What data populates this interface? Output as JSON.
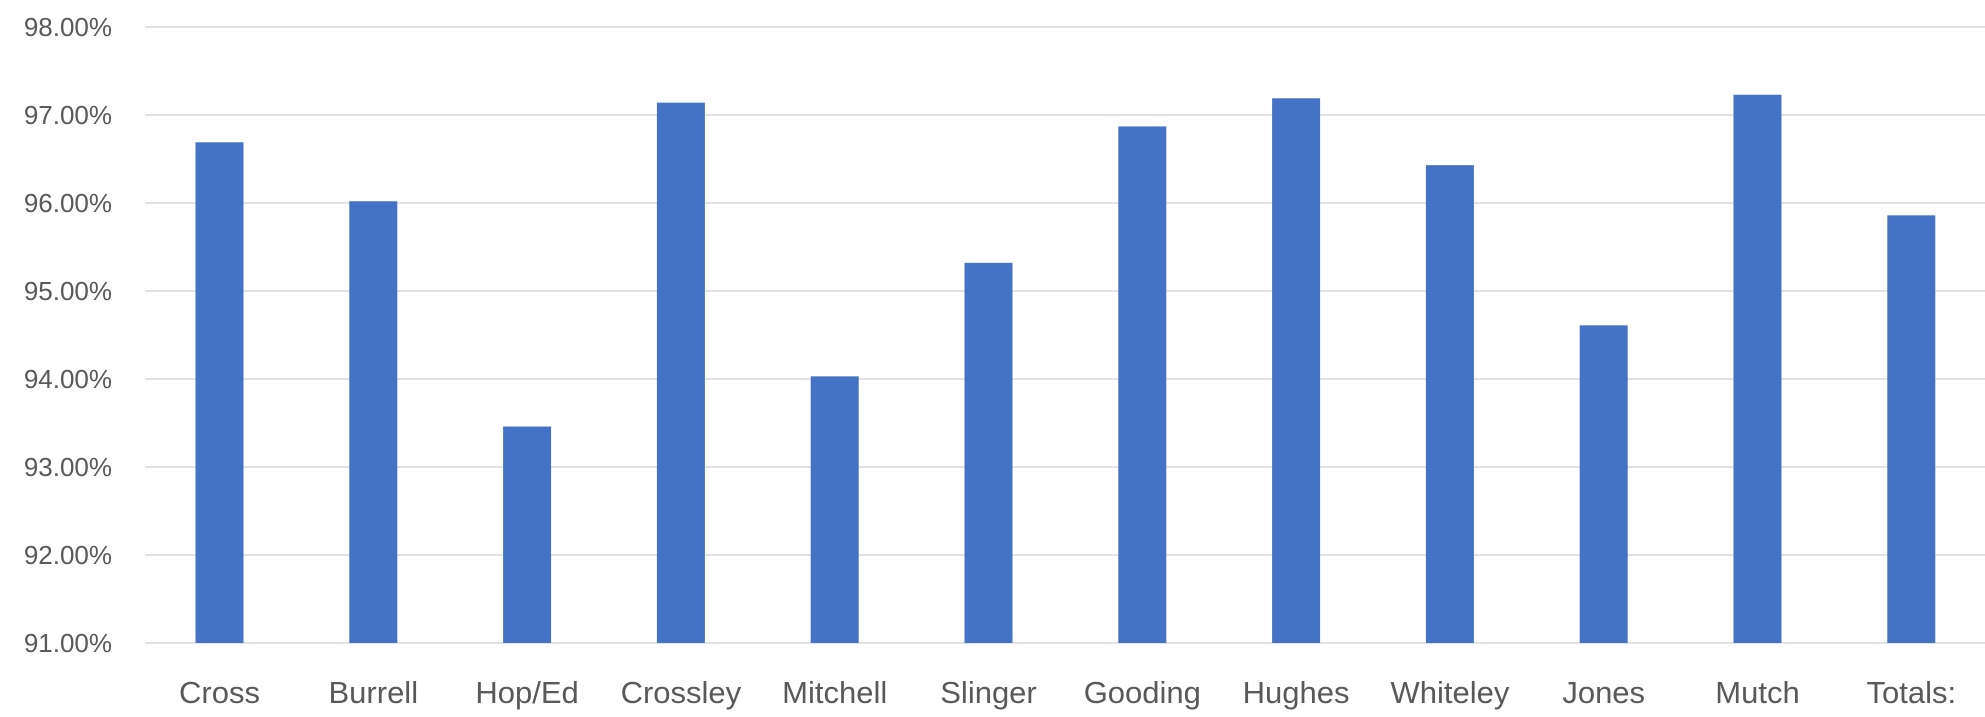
{
  "chart_data": {
    "type": "bar",
    "title": "",
    "xlabel": "",
    "ylabel": "",
    "categories": [
      "Cross",
      "Burrell",
      "Hop/Ed",
      "Crossley",
      "Mitchell",
      "Slinger",
      "Gooding",
      "Hughes",
      "Whiteley",
      "Jones",
      "Mutch",
      "Totals:"
    ],
    "values": [
      96.69,
      96.02,
      93.46,
      97.14,
      94.03,
      95.32,
      96.87,
      97.19,
      96.43,
      94.61,
      97.23,
      95.86
    ],
    "ylim": [
      91,
      98
    ],
    "yticks": [
      91,
      92,
      93,
      94,
      95,
      96,
      97,
      98
    ],
    "ytick_labels": [
      "91.00%",
      "92.00%",
      "93.00%",
      "94.00%",
      "95.00%",
      "96.00%",
      "97.00%",
      "98.00%"
    ],
    "grid": true,
    "legend": "none",
    "colors": {
      "bar": "#4472C4",
      "grid": "#D9D9D9",
      "text": "#595959"
    }
  }
}
